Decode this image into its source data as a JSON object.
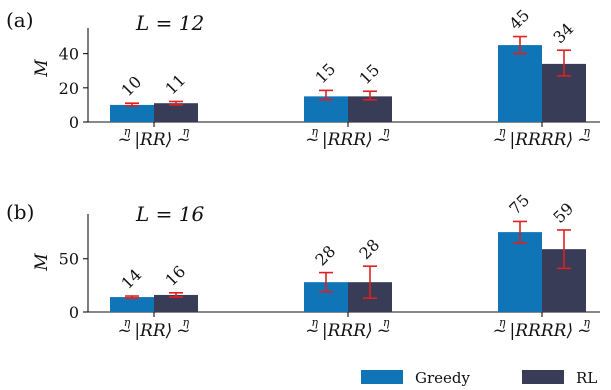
{
  "colors": {
    "greedy": "#0f75b7",
    "rl": "#383c57",
    "error": "#e02020"
  },
  "legend": {
    "position": "bottom-right",
    "labels": [
      "Greedy",
      "RL"
    ]
  },
  "chart_data": [
    {
      "type": "bar",
      "panel_label": "(a)",
      "annotation": "L = 12",
      "ylabel": "M",
      "ylim": [
        0,
        55
      ],
      "yticks": [
        0,
        20,
        40
      ],
      "categories": [
        {
          "left": "~η",
          "ket": "|RR⟩",
          "right": "~η"
        },
        {
          "left": "~η",
          "ket": "|RRR⟩",
          "right": "~η"
        },
        {
          "left": "~η",
          "ket": "|RRRR⟩",
          "right": "~η"
        }
      ],
      "series": [
        {
          "name": "Greedy",
          "values": [
            10,
            15,
            45
          ],
          "err_low": [
            9.5,
            13,
            40
          ],
          "err_high": [
            11,
            18.5,
            50
          ],
          "labels": [
            "10",
            "15",
            "45"
          ]
        },
        {
          "name": "RL",
          "values": [
            11,
            15,
            34
          ],
          "err_low": [
            10,
            13,
            27
          ],
          "err_high": [
            12,
            18,
            42
          ],
          "labels": [
            "11",
            "15",
            "34"
          ]
        }
      ]
    },
    {
      "type": "bar",
      "panel_label": "(b)",
      "annotation": "L = 16",
      "ylabel": "M",
      "ylim": [
        0,
        92
      ],
      "yticks": [
        0,
        50
      ],
      "categories": [
        {
          "left": "~η",
          "ket": "|RR⟩",
          "right": "~η"
        },
        {
          "left": "~η",
          "ket": "|RRR⟩",
          "right": "~η"
        },
        {
          "left": "~η",
          "ket": "|RRRR⟩",
          "right": "~η"
        }
      ],
      "series": [
        {
          "name": "Greedy",
          "values": [
            14,
            28,
            75
          ],
          "err_low": [
            13,
            19,
            65
          ],
          "err_high": [
            15,
            37,
            85
          ],
          "labels": [
            "14",
            "28",
            "75"
          ]
        },
        {
          "name": "RL",
          "values": [
            16,
            28,
            59
          ],
          "err_low": [
            14,
            13,
            41
          ],
          "err_high": [
            18,
            43,
            77
          ],
          "labels": [
            "16",
            "28",
            "59"
          ]
        }
      ]
    }
  ]
}
